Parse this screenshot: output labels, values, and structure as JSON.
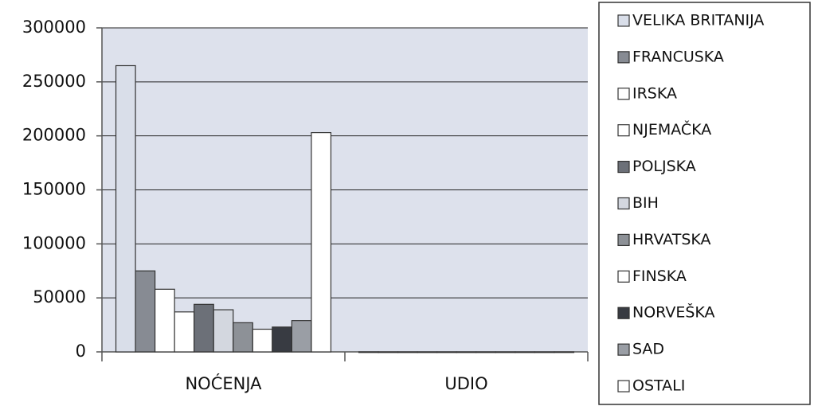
{
  "chart_data": {
    "type": "bar",
    "categories": [
      "NOĆENJA",
      "UDIO"
    ],
    "series": [
      {
        "name": "VELIKA BRITANIJA",
        "color": "#d9dee9",
        "values": [
          265000,
          32
        ]
      },
      {
        "name": "FRANCUSKA",
        "color": "#878b93",
        "values": [
          75000,
          9
        ]
      },
      {
        "name": "IRSKA",
        "color": "#ffffff",
        "values": [
          58000,
          7
        ]
      },
      {
        "name": "NJEMAČKA",
        "color": "#ffffff",
        "values": [
          37000,
          5
        ]
      },
      {
        "name": "POLJSKA",
        "color": "#6c7078",
        "values": [
          44000,
          5
        ]
      },
      {
        "name": "BIH",
        "color": "#d3d7df",
        "values": [
          39000,
          5
        ]
      },
      {
        "name": "HRVATSKA",
        "color": "#8d9197",
        "values": [
          27000,
          3
        ]
      },
      {
        "name": "FINSKA",
        "color": "#ffffff",
        "values": [
          21000,
          3
        ]
      },
      {
        "name": "NORVEŠKA",
        "color": "#383b42",
        "values": [
          23000,
          3
        ]
      },
      {
        "name": "SAD",
        "color": "#9a9ea5",
        "values": [
          29000,
          4
        ]
      },
      {
        "name": "OSTALI",
        "color": "#ffffff",
        "values": [
          203000,
          25
        ]
      }
    ],
    "ylim": [
      0,
      300000
    ],
    "yticks": [
      0,
      50000,
      100000,
      150000,
      200000,
      250000,
      300000
    ],
    "grid": true,
    "legend": "right"
  }
}
